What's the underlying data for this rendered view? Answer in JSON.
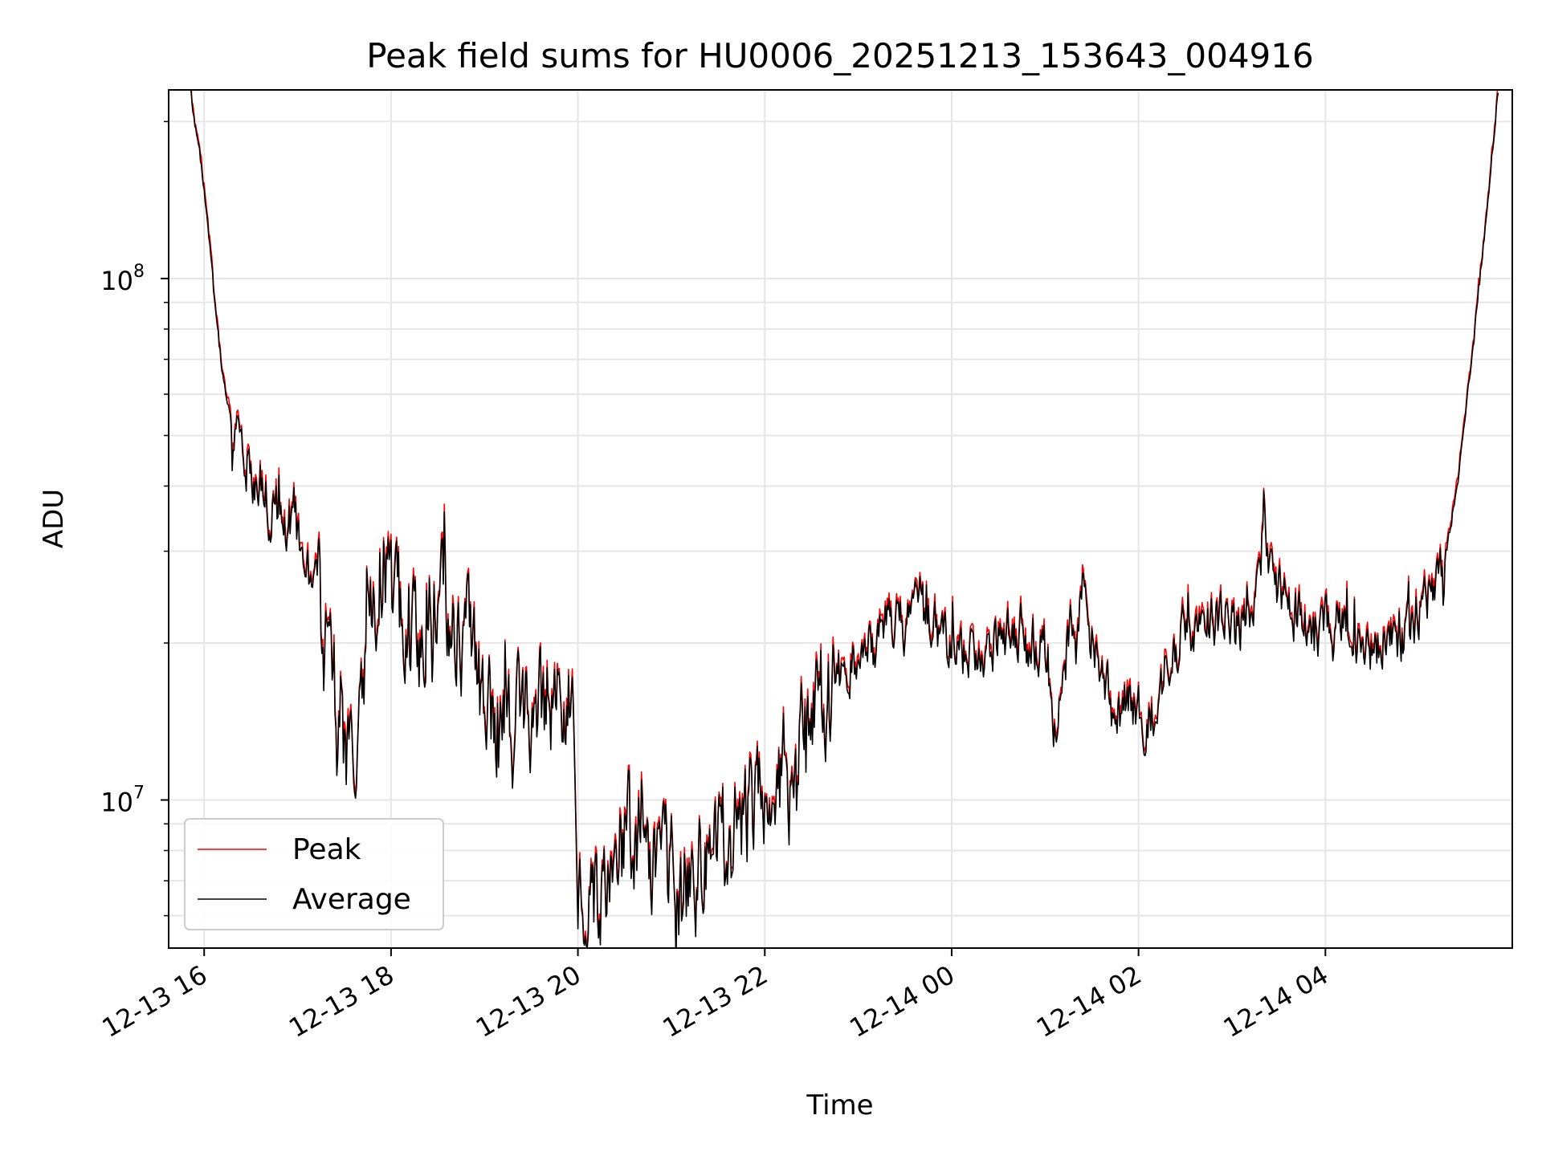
{
  "chart_data": {
    "type": "line",
    "title": "Peak field sums for HU0006_20251213_153643_004916",
    "xlabel": "Time",
    "ylabel": "ADU",
    "yscale": "log",
    "ylim": [
      5200000,
      230000000
    ],
    "xlim_hours": [
      15.62,
      30.0
    ],
    "x_ticks": [
      {
        "label": "12-13 16",
        "hours": 16
      },
      {
        "label": "12-13 18",
        "hours": 18
      },
      {
        "label": "12-13 20",
        "hours": 20
      },
      {
        "label": "12-13 22",
        "hours": 22
      },
      {
        "label": "12-14 00",
        "hours": 24
      },
      {
        "label": "12-14 02",
        "hours": 26
      },
      {
        "label": "12-14 04",
        "hours": 28
      }
    ],
    "y_major_ticks": [
      {
        "label_base": "10",
        "label_exp": "7",
        "value": 10000000
      },
      {
        "label_base": "10",
        "label_exp": "8",
        "value": 100000000
      }
    ],
    "grid": true,
    "legend": {
      "position": "lower-left",
      "entries": [
        "Peak",
        "Average"
      ]
    },
    "series": [
      {
        "name": "Peak",
        "color": "#ff0000"
      },
      {
        "name": "Average",
        "color": "#000000"
      }
    ],
    "envelope_hours": [
      15.85,
      16.0,
      16.1,
      16.2,
      16.3,
      16.5,
      16.7,
      17.0,
      17.2,
      17.4,
      17.5,
      17.65,
      17.8,
      17.9,
      18.1,
      18.3,
      18.4,
      18.6,
      18.8,
      19.0,
      19.2,
      19.5,
      19.8,
      19.95,
      20.0,
      20.1,
      20.3,
      20.5,
      20.8,
      21.0,
      21.3,
      21.5,
      21.7,
      21.9,
      22.1,
      22.3,
      22.5,
      22.7,
      22.9,
      23.2,
      23.5,
      23.7,
      23.9,
      24.3,
      24.7,
      25.0,
      25.1,
      25.3,
      25.4,
      25.6,
      25.75,
      25.9,
      26.1,
      26.3,
      26.5,
      26.8,
      27.0,
      27.2,
      27.35,
      27.5,
      27.7,
      28.0,
      28.3,
      28.5,
      28.8,
      29.1,
      29.3,
      29.45,
      29.6,
      29.75,
      29.85
    ],
    "envelope_adu": [
      230000000,
      150000000,
      95000000,
      65000000,
      52000000,
      43000000,
      38000000,
      32000000,
      25000000,
      15000000,
      11000000,
      15000000,
      25000000,
      30000000,
      22000000,
      19000000,
      27000000,
      24000000,
      20000000,
      15000000,
      13000000,
      15000000,
      16000000,
      14000000,
      7500000,
      6500000,
      7000000,
      8500000,
      7500000,
      7000000,
      7500000,
      8000000,
      9000000,
      9500000,
      10500000,
      11500000,
      13500000,
      16000000,
      18000000,
      20000000,
      22000000,
      24000000,
      20000000,
      19000000,
      21000000,
      19000000,
      14000000,
      22000000,
      25000000,
      17000000,
      14000000,
      16000000,
      14000000,
      18000000,
      21000000,
      22000000,
      21000000,
      23000000,
      35000000,
      25000000,
      23000000,
      21000000,
      21000000,
      20000000,
      20000000,
      25000000,
      30000000,
      45000000,
      80000000,
      150000000,
      230000000
    ],
    "noise_seed": 20251213
  }
}
